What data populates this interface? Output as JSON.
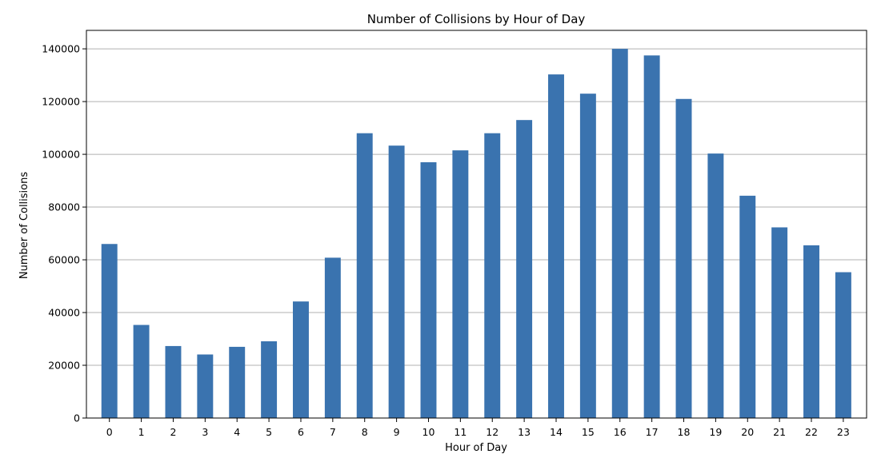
{
  "chart_data": {
    "type": "bar",
    "title": "Number of Collisions by Hour of Day",
    "xlabel": "Hour of Day",
    "ylabel": "Number of Collisions",
    "categories": [
      "0",
      "1",
      "2",
      "3",
      "4",
      "5",
      "6",
      "7",
      "8",
      "9",
      "10",
      "11",
      "12",
      "13",
      "14",
      "15",
      "16",
      "17",
      "18",
      "19",
      "20",
      "21",
      "22",
      "23"
    ],
    "values": [
      66000,
      35300,
      27300,
      24100,
      27000,
      29100,
      44200,
      60800,
      108000,
      103300,
      97000,
      101500,
      108000,
      113000,
      130300,
      123000,
      140000,
      137500,
      121000,
      100300,
      84300,
      72300,
      65500,
      55300
    ],
    "ylim": [
      0,
      147000
    ],
    "yticks": [
      0,
      20000,
      40000,
      60000,
      80000,
      100000,
      120000,
      140000
    ],
    "ytick_labels": [
      "0",
      "20000",
      "40000",
      "60000",
      "80000",
      "100000",
      "120000",
      "140000"
    ],
    "grid": "y",
    "bar_color": "#3a73af",
    "grid_color": "#b0b0b0",
    "axis_color": "#000000"
  }
}
